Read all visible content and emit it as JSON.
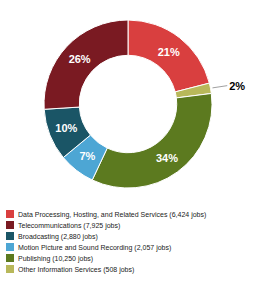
{
  "chart_data": {
    "type": "donut",
    "categories": [
      "Data Processing, Hosting, and Related Services (6,424 jobs)",
      "Other Information Services (508 jobs)",
      "Publishing (10,250 jobs)",
      "Motion Picture and Sound Recording (2,057 jobs)",
      "Broadcasting (2,880 jobs)",
      "Telecommunications (7,925 jobs)"
    ],
    "values": [
      21,
      2,
      34,
      7,
      10,
      26
    ],
    "value_labels": [
      "21%",
      "2%",
      "34%",
      "7%",
      "10%",
      "26%"
    ],
    "colors": [
      "#d93f3f",
      "#b8b85a",
      "#5c7a1f",
      "#4da6d4",
      "#1a5566",
      "#7a1a22"
    ],
    "data_labels": true,
    "legend": "bottom"
  }
}
